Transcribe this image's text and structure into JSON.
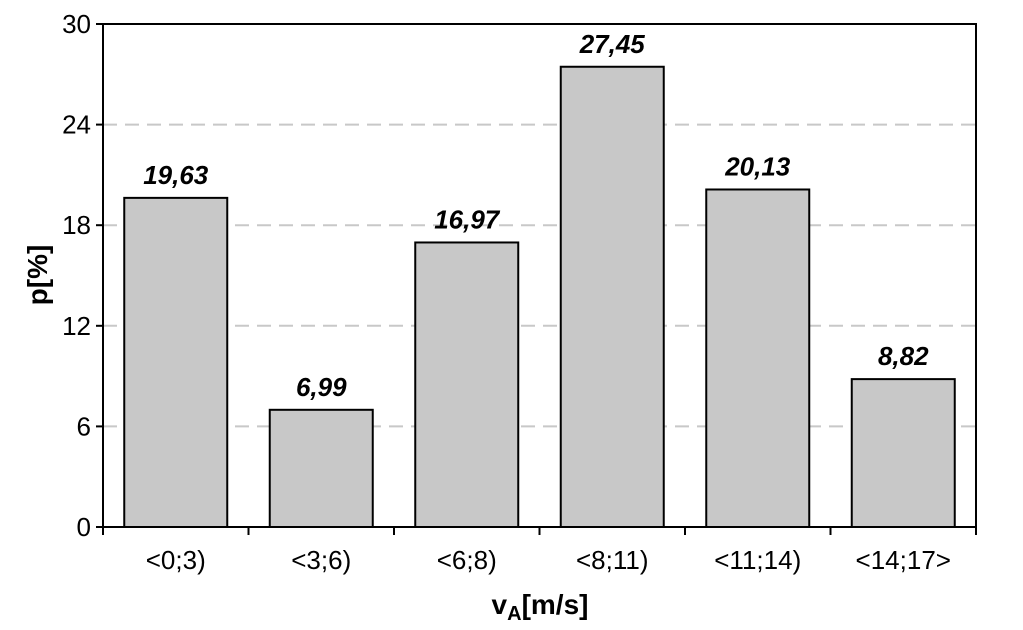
{
  "chart_data": {
    "type": "bar",
    "categories": [
      "<0;3)",
      "<3;6)",
      "<6;8)",
      "<8;11)",
      "<11;14)",
      "<14;17>"
    ],
    "values": [
      19.63,
      6.99,
      16.97,
      27.45,
      20.13,
      8.82
    ],
    "data_labels": [
      "19,63",
      "6,99",
      "16,97",
      "27,45",
      "20,13",
      "8,82"
    ],
    "ylabel": "p[%]",
    "xlabel_main": "v",
    "xlabel_sub": "A",
    "xlabel_unit": "[m/s]",
    "ylim": [
      0,
      30
    ],
    "yticks": [
      "0",
      "6",
      "12",
      "18",
      "24",
      "30"
    ],
    "ytick_values": [
      0,
      6,
      12,
      18,
      24,
      30
    ],
    "grid": "horizontal dashed",
    "bar_color": "#c8c8c8",
    "bar_edge_color": "#000000",
    "grid_color": "#c8c8c8"
  }
}
